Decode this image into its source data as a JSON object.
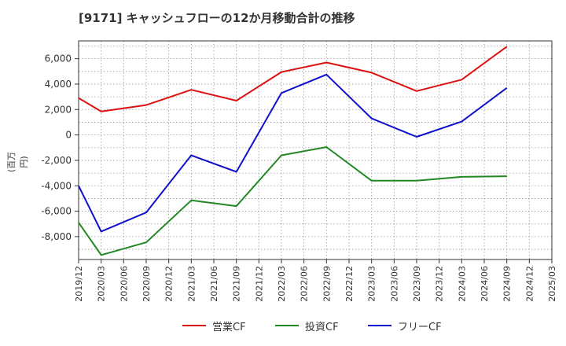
{
  "chart_data": {
    "type": "line",
    "title": "[9171]  キャッシュフローの12か月移動合計の推移",
    "ylabel": "(百万円)",
    "xlabel": "",
    "ylim": [
      -9800,
      7400
    ],
    "yticks": [
      -8000,
      -6000,
      -4000,
      -2000,
      0,
      2000,
      4000,
      6000
    ],
    "ytick_labels": [
      "-8,000",
      "-6,000",
      "-4,000",
      "-2,000",
      "0",
      "2,000",
      "4,000",
      "6,000"
    ],
    "categories": [
      "2019/12",
      "2020/03",
      "2020/06",
      "2020/09",
      "2020/12",
      "2021/03",
      "2021/06",
      "2021/09",
      "2021/12",
      "2022/03",
      "2022/06",
      "2022/09",
      "2022/12",
      "2023/03",
      "2023/06",
      "2023/09",
      "2023/12",
      "2024/03",
      "2024/06",
      "2024/09",
      "2024/12",
      "2025/03"
    ],
    "grid": true,
    "legend_position": "bottom",
    "series": [
      {
        "name": "営業CF",
        "color": "#dd1111",
        "values": [
          2900,
          1850,
          null,
          2350,
          null,
          3550,
          null,
          2700,
          null,
          4950,
          null,
          5700,
          null,
          4900,
          null,
          3450,
          null,
          4350,
          null,
          6950,
          null,
          null
        ]
      },
      {
        "name": "投資CF",
        "color": "#228822",
        "values": [
          -6900,
          -9450,
          null,
          -8450,
          null,
          -5150,
          null,
          -5600,
          null,
          -1600,
          null,
          -950,
          null,
          -3600,
          null,
          -3600,
          null,
          -3300,
          null,
          -3250,
          null,
          null
        ]
      },
      {
        "name": "フリーCF",
        "color": "#1111cc",
        "values": [
          -4000,
          -7600,
          null,
          -6100,
          null,
          -1600,
          null,
          -2900,
          null,
          3300,
          null,
          4750,
          null,
          1300,
          null,
          -150,
          null,
          1050,
          null,
          3700,
          null,
          null
        ]
      }
    ]
  }
}
